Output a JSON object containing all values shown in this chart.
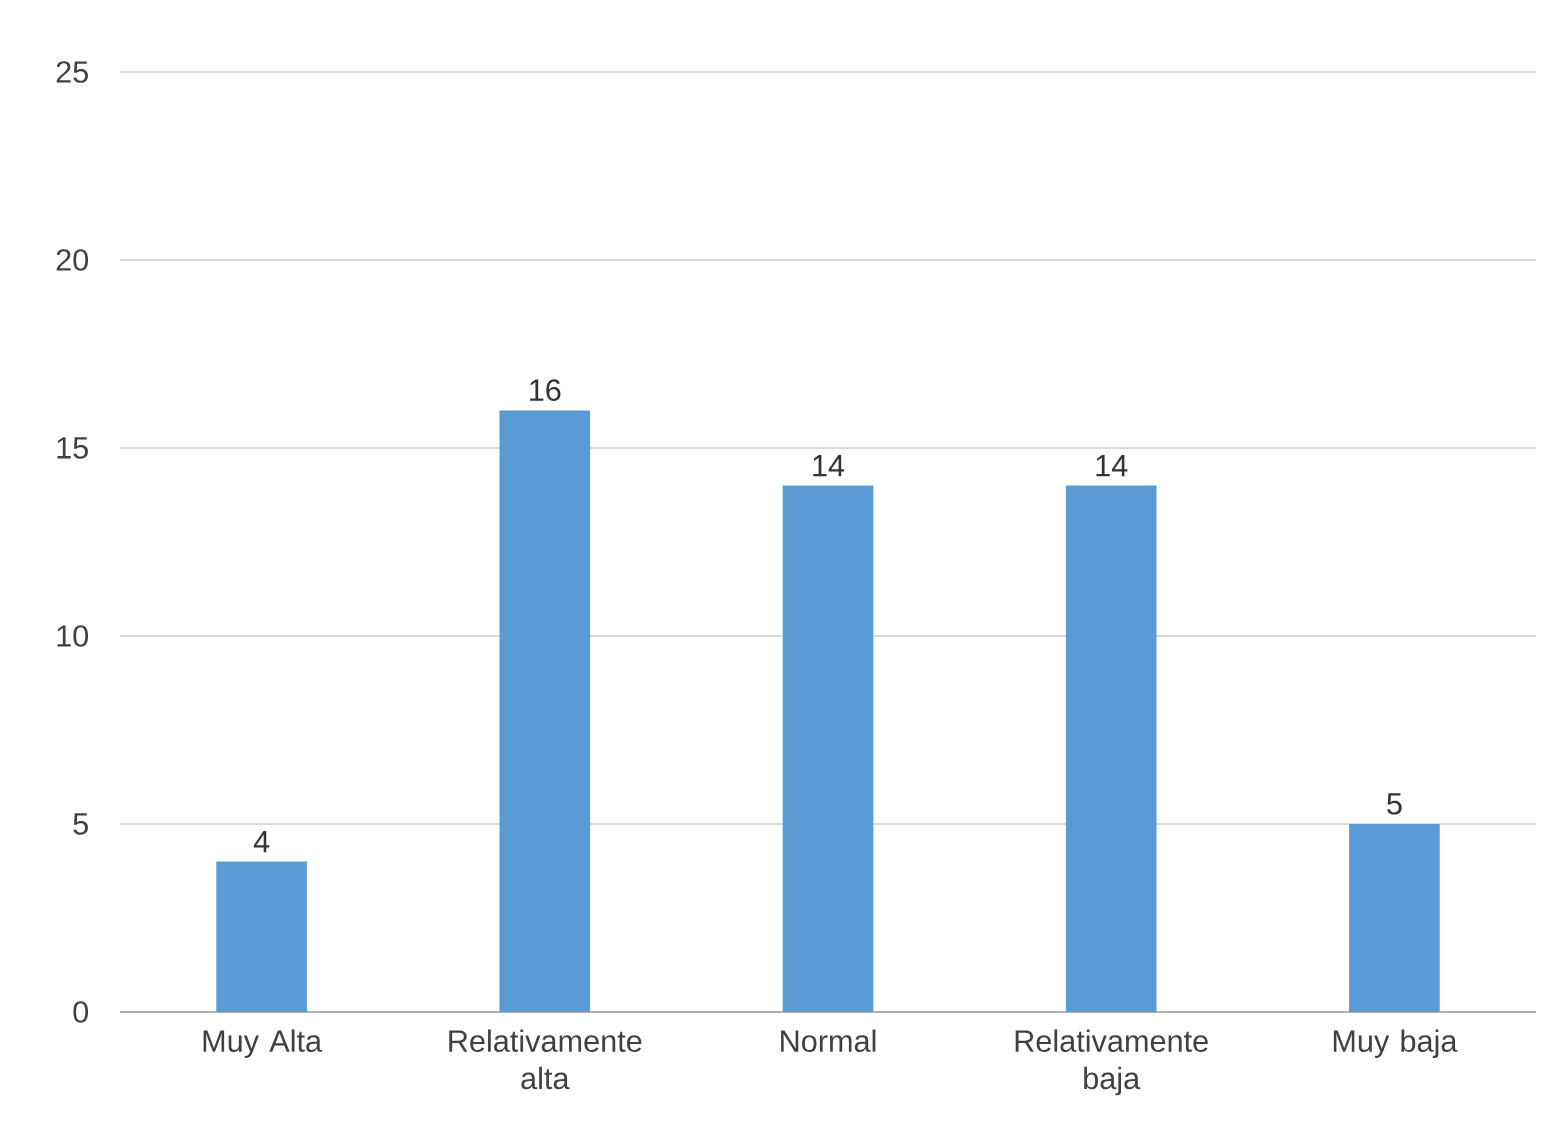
{
  "chart_data": {
    "type": "bar",
    "categories": [
      "Muy Alta",
      "Relativamente alta",
      "Normal",
      "Relativamente baja",
      "Muy baja"
    ],
    "values": [
      4,
      16,
      14,
      14,
      5
    ],
    "color": "#5b9bd5",
    "ylim": [
      0,
      25
    ],
    "yticks": [
      0,
      5,
      10,
      15,
      20,
      25
    ],
    "grid": "y",
    "data_labels": true
  }
}
